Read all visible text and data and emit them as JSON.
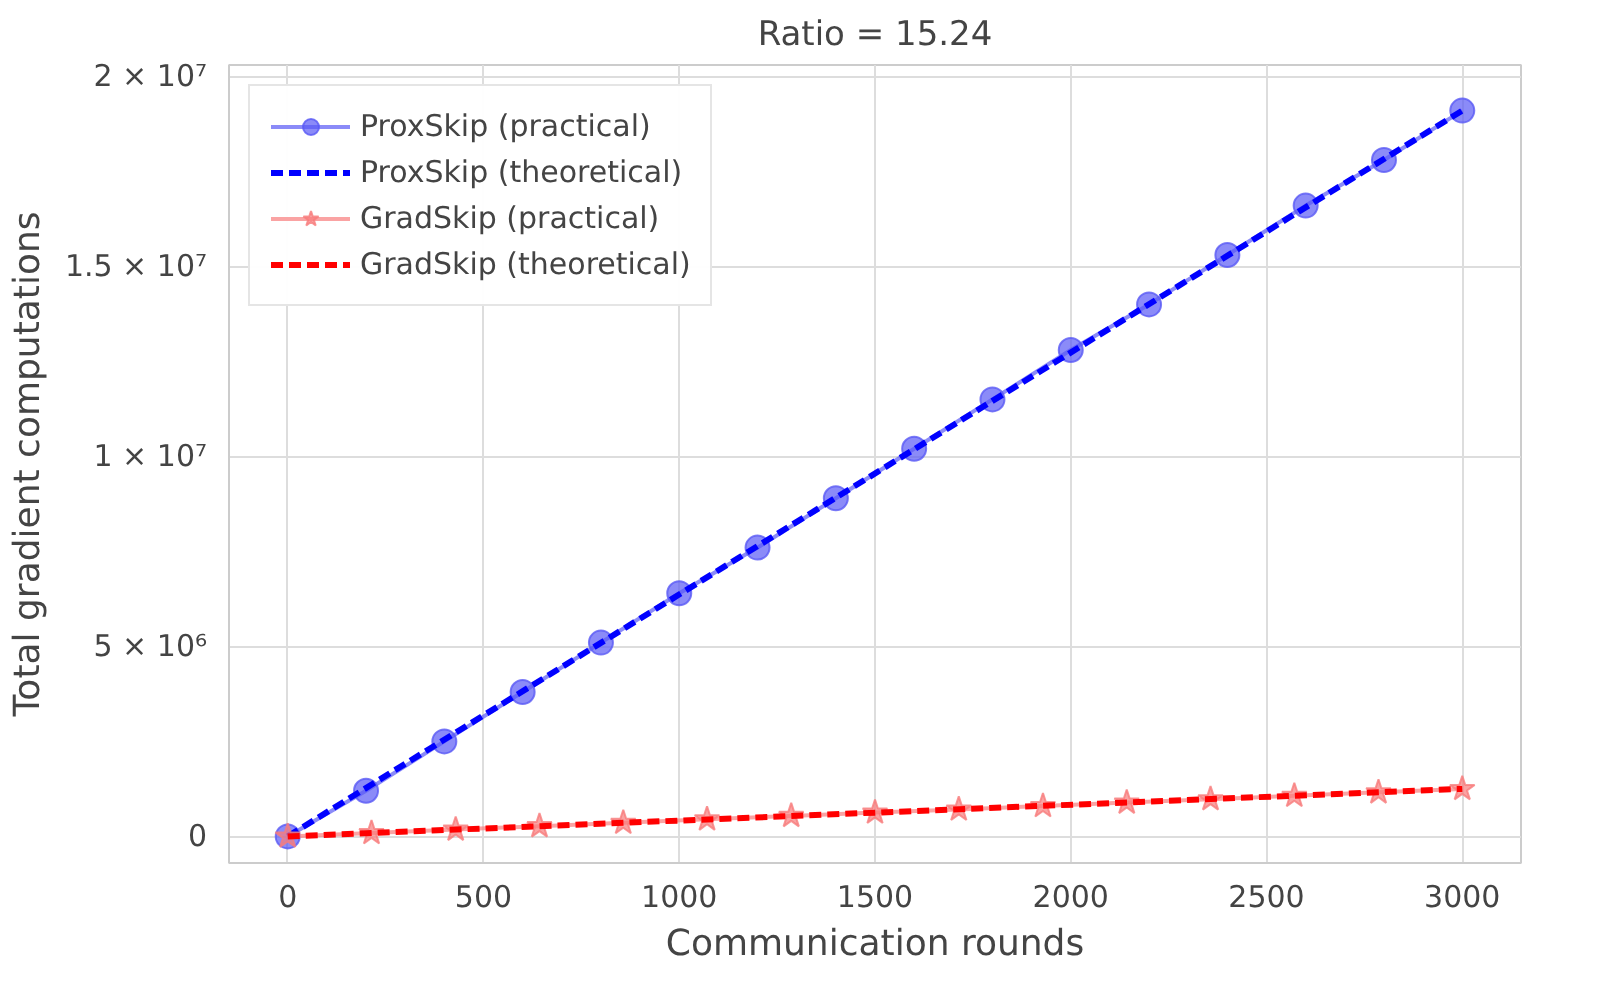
{
  "chart_data": {
    "type": "line",
    "title": "Ratio = 15.24",
    "xlabel": "Communication rounds",
    "ylabel": "Total gradient computations",
    "xlim": [
      -150,
      3150
    ],
    "xticks": [
      0,
      500,
      1000,
      1500,
      2000,
      2500,
      3000
    ],
    "ylim": [
      -700000,
      20300000
    ],
    "yticks": [
      {
        "value": 0,
        "label": "0"
      },
      {
        "value": 5000000,
        "label": "5 × 10⁶"
      },
      {
        "value": 10000000,
        "label": "1 × 10⁷"
      },
      {
        "value": 15000000,
        "label": "1.5 × 10⁷"
      },
      {
        "value": 20000000,
        "label": "2 × 10⁷"
      }
    ],
    "grid": true,
    "legend": "top left",
    "series": [
      {
        "name": "ProxSkip (practical)",
        "color": "#5a5af5",
        "marker": "circle",
        "line_style": "solid",
        "x": [
          0,
          200,
          400,
          600,
          800,
          1000,
          1200,
          1400,
          1600,
          1800,
          2000,
          2200,
          2400,
          2600,
          2800,
          3000
        ],
        "values": [
          0,
          1200000,
          2500000,
          3800000,
          5100000,
          6400000,
          7600000,
          8900000,
          10200000,
          11500000,
          12800000,
          14000000,
          15300000,
          16600000,
          17800000,
          19100000
        ]
      },
      {
        "name": "ProxSkip (theoretical)",
        "color": "#0000ff",
        "marker": "none",
        "line_style": "dashed",
        "x": [
          0,
          3000
        ],
        "values": [
          0,
          19100000
        ]
      },
      {
        "name": "GradSkip (practical)",
        "color": "#f87c7c",
        "marker": "star",
        "line_style": "solid",
        "x": [
          0,
          214,
          429,
          643,
          857,
          1071,
          1286,
          1500,
          1714,
          1929,
          2143,
          2357,
          2571,
          2786,
          3000
        ],
        "values": [
          0,
          90000,
          180000,
          270000,
          360000,
          450000,
          540000,
          630000,
          710000,
          800000,
          890000,
          980000,
          1070000,
          1160000,
          1250000
        ]
      },
      {
        "name": "GradSkip (theoretical)",
        "color": "#ff0000",
        "marker": "none",
        "line_style": "dashed",
        "x": [
          0,
          3000
        ],
        "values": [
          0,
          1250000
        ]
      }
    ]
  }
}
